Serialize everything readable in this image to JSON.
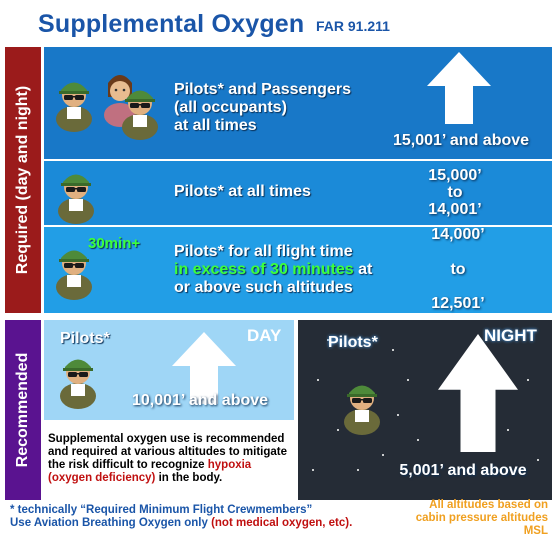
{
  "header": {
    "title": "Supplemental Oxygen",
    "far": "FAR 91.211"
  },
  "sidebar": {
    "required": "Required (day and night)",
    "recommended": "Recommended"
  },
  "tiers": [
    {
      "line1": "Pilots* and Passengers",
      "line2": "(all occupants)",
      "line3": "at all times",
      "altitude": "15,001’ and above"
    },
    {
      "text": "Pilots* at all times",
      "alt_top": "15,000’",
      "alt_mid": "to",
      "alt_bottom": "14,001’"
    },
    {
      "badge": "30min+",
      "line1": "Pilots* for all flight time",
      "line2_highlight": "in excess of 30 minutes",
      "line2_rest": " at",
      "line3": "or above such altitudes",
      "alt_top": "14,000’",
      "alt_mid": "to",
      "alt_bottom": "12,501’"
    }
  ],
  "day": {
    "tag": "DAY",
    "label": "Pilots*",
    "altitude": "10,001’ and above"
  },
  "night": {
    "tag": "NIGHT",
    "label": "Pilots*",
    "altitude": "5,001’ and above"
  },
  "note": {
    "part1": "Supplemental oxygen use is recommended and required at various altitudes to mitigate the risk difficult to recognize ",
    "highlight": "hypoxia (oxygen deficiency)",
    "part2": " in the body."
  },
  "footer": {
    "line1": "* technically “Required Minimum Flight Crewmembers”",
    "line2_main": "Use Aviation Breathing Oxygen only ",
    "line2_red": "(not medical oxygen, etc).",
    "right_line1": "All altitudes based on",
    "right_line2": "cabin pressure altitudes MSL"
  },
  "colors": {
    "title": "#1a55a8",
    "required": "#9b1b1b",
    "recommended": "#5a1390",
    "highlight_green": "#3cff3c",
    "warning_red": "#c01010",
    "note_orange": "#f0a020"
  },
  "icons": [
    "pilot-icon",
    "passenger-icon",
    "up-arrow-icon",
    "star-icon"
  ]
}
